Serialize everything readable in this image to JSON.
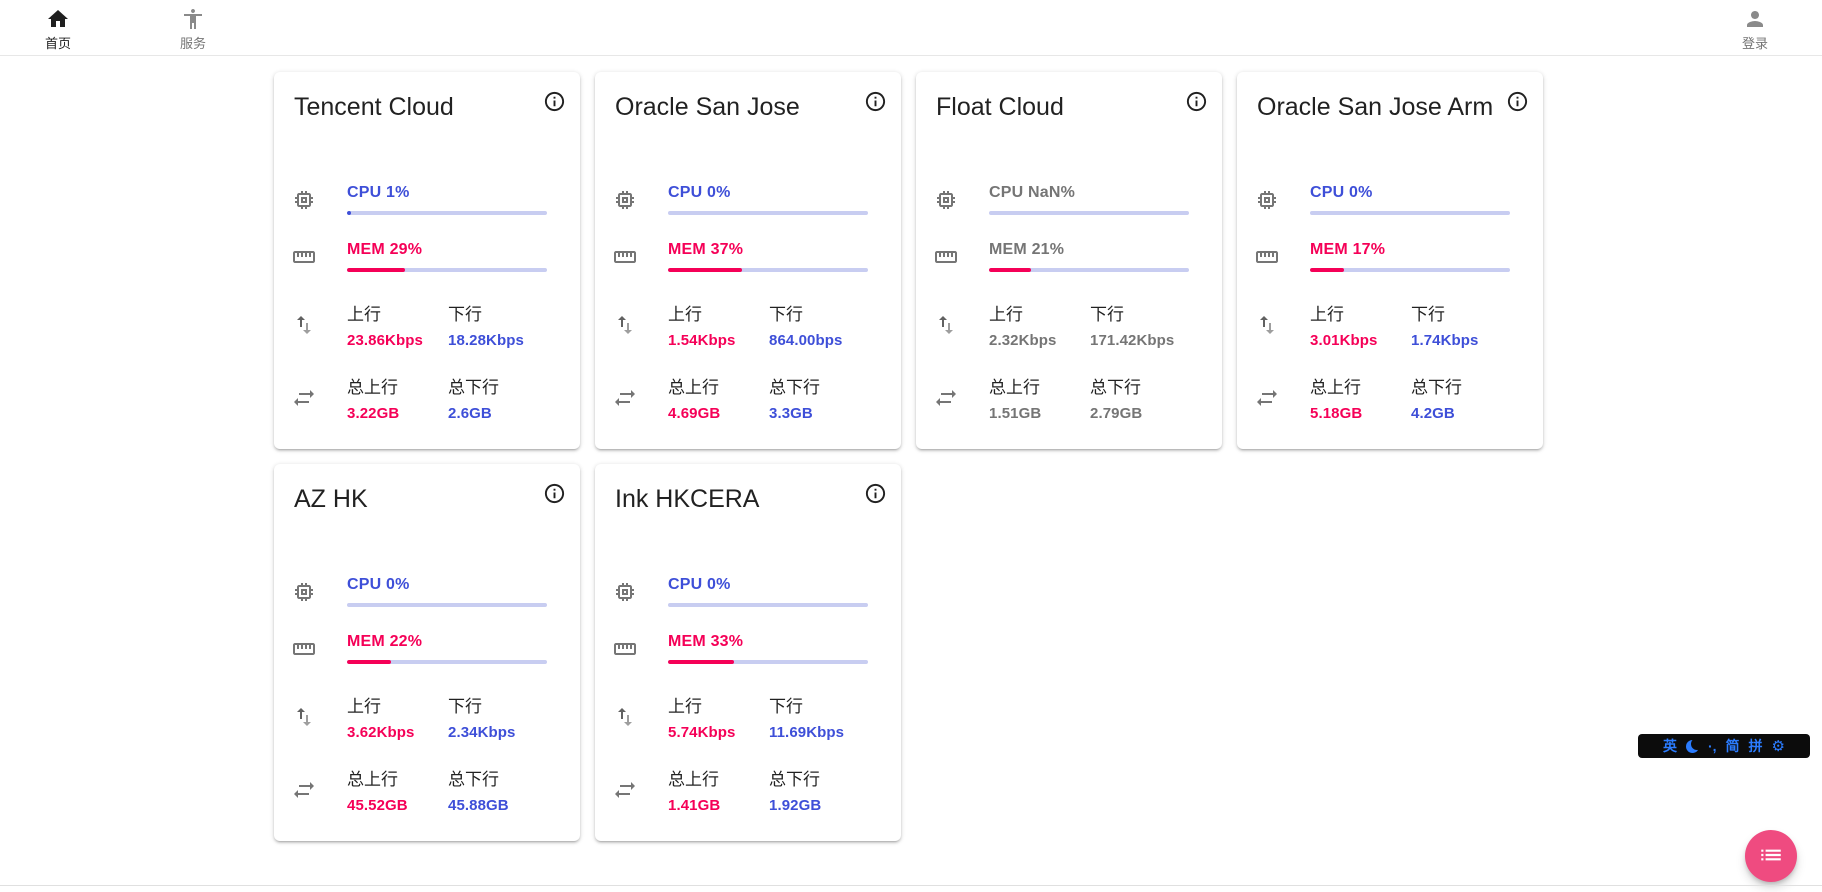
{
  "navbar": {
    "items": [
      {
        "label": "首页",
        "icon": "home-icon",
        "active": true
      },
      {
        "label": "服务",
        "icon": "accessibility-icon",
        "active": false
      }
    ],
    "login": {
      "label": "登录",
      "icon": "person-icon"
    }
  },
  "labels": {
    "up": "上行",
    "down": "下行",
    "total_up": "总上行",
    "total_down": "总下行"
  },
  "colors": {
    "blue": "#3e4fd8",
    "pink": "#f50057",
    "gray": "#757575",
    "bar_track": "#c8cdf1",
    "fab_pink": "#ef4b80",
    "ime_blue": "#2b7cff"
  },
  "servers": [
    {
      "name": "Tencent Cloud",
      "cpu_text": "CPU 1%",
      "cpu_pct": 1,
      "mem_text": "MEM 29%",
      "mem_pct": 29,
      "up": "23.86Kbps",
      "down": "18.28Kbps",
      "total_up": "3.22GB",
      "total_down": "2.6GB",
      "offline": false
    },
    {
      "name": "Oracle San Jose",
      "cpu_text": "CPU 0%",
      "cpu_pct": 0,
      "mem_text": "MEM 37%",
      "mem_pct": 37,
      "up": "1.54Kbps",
      "down": "864.00bps",
      "total_up": "4.69GB",
      "total_down": "3.3GB",
      "offline": false
    },
    {
      "name": "Float Cloud",
      "cpu_text": "CPU NaN%",
      "cpu_pct": 0,
      "mem_text": "MEM 21%",
      "mem_pct": 21,
      "up": "2.32Kbps",
      "down": "171.42Kbps",
      "total_up": "1.51GB",
      "total_down": "2.79GB",
      "offline": true
    },
    {
      "name": "Oracle San Jose Arm",
      "cpu_text": "CPU 0%",
      "cpu_pct": 0,
      "mem_text": "MEM 17%",
      "mem_pct": 17,
      "up": "3.01Kbps",
      "down": "1.74Kbps",
      "total_up": "5.18GB",
      "total_down": "4.2GB",
      "offline": false
    },
    {
      "name": "AZ HK",
      "cpu_text": "CPU 0%",
      "cpu_pct": 0,
      "mem_text": "MEM 22%",
      "mem_pct": 22,
      "up": "3.62Kbps",
      "down": "2.34Kbps",
      "total_up": "45.52GB",
      "total_down": "45.88GB",
      "offline": false
    },
    {
      "name": "Ink HKCERA",
      "cpu_text": "CPU 0%",
      "cpu_pct": 0,
      "mem_text": "MEM 33%",
      "mem_pct": 33,
      "up": "5.74Kbps",
      "down": "11.69Kbps",
      "total_up": "1.41GB",
      "total_down": "1.92GB",
      "offline": false
    }
  ],
  "ime_toolbar": {
    "lang": "英",
    "punctuation": "·,",
    "simplified": "简",
    "pinyin": "拼",
    "gear": "⚙"
  }
}
